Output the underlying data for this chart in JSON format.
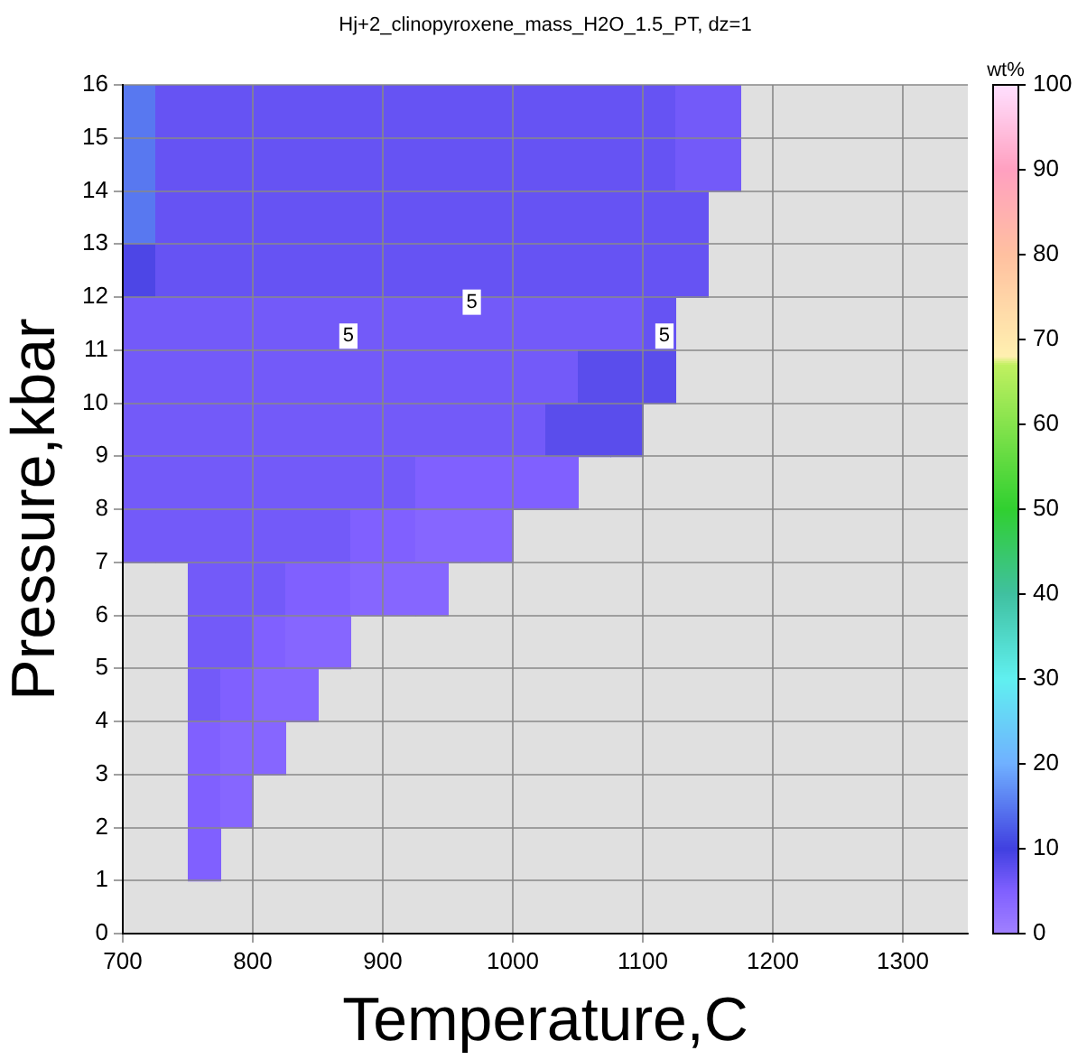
{
  "chart_data": {
    "type": "heatmap",
    "title": "Hj+2_clinopyroxene_mass_H2O_1.5_PT, dz=1",
    "xlabel": "Temperature,C",
    "ylabel": "Pressure,kbar",
    "clabel": "wt%",
    "x": [
      712.5,
      737.5,
      762.5,
      787.5,
      812.5,
      837.5,
      862.5,
      887.5,
      912.5,
      937.5,
      962.5,
      987.5,
      1012.5,
      1037.5,
      1062.5,
      1087.5,
      1112.5,
      1137.5,
      1162.5,
      1187.5
    ],
    "y": [
      15.5,
      14.5,
      13.5,
      12.5,
      11.5,
      10.5,
      9.5,
      8.5,
      7.5,
      6.5,
      5.5,
      4.5,
      3.5,
      2.5,
      1.5
    ],
    "cells": [
      [
        15,
        7,
        7,
        7,
        7,
        7,
        7,
        7,
        7,
        7,
        7,
        7,
        7,
        7,
        7,
        7,
        7,
        6,
        6,
        null
      ],
      [
        15,
        7,
        7,
        7,
        7,
        7,
        7,
        7,
        7,
        7,
        7,
        7,
        7,
        7,
        7,
        7,
        7,
        6,
        6,
        null
      ],
      [
        15,
        7,
        7,
        7,
        7,
        7,
        7,
        7,
        7,
        7,
        7,
        7,
        7,
        7,
        7,
        7,
        7,
        7,
        null,
        null
      ],
      [
        9,
        7,
        7,
        7,
        7,
        7,
        7,
        7,
        7,
        7,
        7,
        7,
        7,
        7,
        7,
        7,
        7,
        7,
        null,
        null
      ],
      [
        6,
        6,
        6,
        6,
        6,
        6,
        6,
        6,
        6,
        6,
        6,
        6,
        6,
        6,
        6,
        6,
        7,
        null,
        null,
        null
      ],
      [
        6,
        6,
        6,
        6,
        6,
        6,
        6,
        6,
        6,
        6,
        6,
        6,
        6,
        6,
        8,
        8,
        8,
        null,
        null,
        null
      ],
      [
        6,
        6,
        6,
        6,
        6,
        6,
        6,
        6,
        6,
        6,
        6,
        6,
        6,
        8,
        8,
        8,
        null,
        null,
        null,
        null
      ],
      [
        6,
        6,
        6,
        6,
        6,
        6,
        6,
        6,
        6,
        5,
        5,
        5,
        5,
        5,
        null,
        null,
        null,
        null,
        null,
        null
      ],
      [
        6,
        6,
        6,
        6,
        6,
        6,
        6,
        5,
        5,
        4,
        4,
        4,
        null,
        null,
        null,
        null,
        null,
        null,
        null,
        null
      ],
      [
        null,
        null,
        6,
        6,
        6,
        5,
        5,
        4,
        4,
        4,
        null,
        null,
        null,
        null,
        null,
        null,
        null,
        null,
        null,
        null
      ],
      [
        null,
        null,
        6,
        6,
        5,
        4,
        4,
        null,
        null,
        null,
        null,
        null,
        null,
        null,
        null,
        null,
        null,
        null,
        null,
        null
      ],
      [
        null,
        null,
        6,
        5,
        4,
        4,
        null,
        null,
        null,
        null,
        null,
        null,
        null,
        null,
        null,
        null,
        null,
        null,
        null,
        null
      ],
      [
        null,
        null,
        5,
        4,
        4,
        null,
        null,
        null,
        null,
        null,
        null,
        null,
        null,
        null,
        null,
        null,
        null,
        null,
        null,
        null
      ],
      [
        null,
        null,
        5,
        4,
        null,
        null,
        null,
        null,
        null,
        null,
        null,
        null,
        null,
        null,
        null,
        null,
        null,
        null,
        null,
        null
      ],
      [
        null,
        null,
        5,
        null,
        null,
        null,
        null,
        null,
        null,
        null,
        null,
        null,
        null,
        null,
        null,
        null,
        null,
        null,
        null,
        null
      ]
    ],
    "xlim": [
      700,
      1350
    ],
    "xticks": [
      700,
      800,
      900,
      1000,
      1100,
      1200,
      1300
    ],
    "ylim": [
      0,
      16
    ],
    "yticks": [
      0,
      1,
      2,
      3,
      4,
      5,
      6,
      7,
      8,
      9,
      10,
      11,
      12,
      13,
      14,
      15,
      16
    ],
    "clim": [
      0,
      100
    ],
    "cticks": [
      0,
      10,
      20,
      30,
      40,
      50,
      60,
      70,
      80,
      90,
      100
    ],
    "grid": true,
    "annotations": [
      "5",
      "5",
      "5"
    ]
  }
}
